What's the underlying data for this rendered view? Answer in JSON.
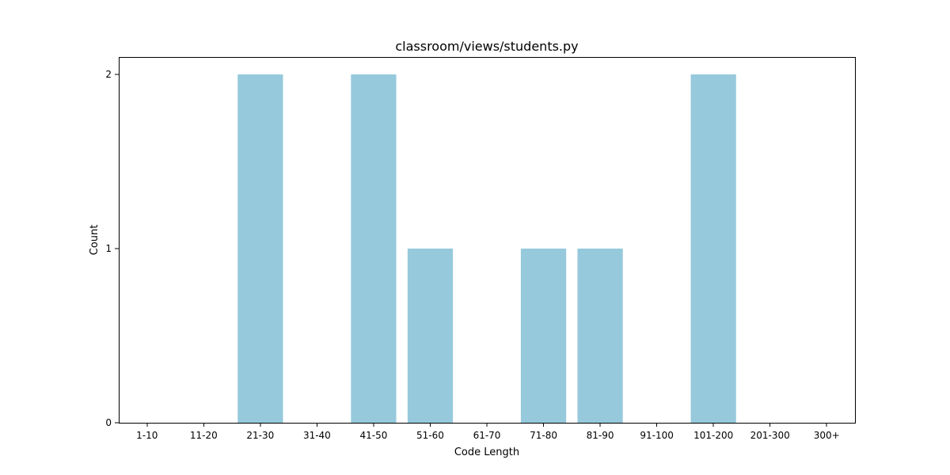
{
  "chart_data": {
    "type": "bar",
    "title": "classroom/views/students.py",
    "xlabel": "Code Length",
    "ylabel": "Count",
    "categories": [
      "1-10",
      "11-20",
      "21-30",
      "31-40",
      "41-50",
      "51-60",
      "61-70",
      "71-80",
      "81-90",
      "91-100",
      "101-200",
      "201-300",
      "300+"
    ],
    "values": [
      0,
      0,
      2,
      0,
      2,
      1,
      0,
      1,
      1,
      0,
      2,
      0,
      0
    ],
    "yticks": [
      0,
      1,
      2
    ],
    "ylim": [
      0,
      2.1
    ],
    "grid": false,
    "legend": "none",
    "bar_color": "#96c9dc"
  }
}
